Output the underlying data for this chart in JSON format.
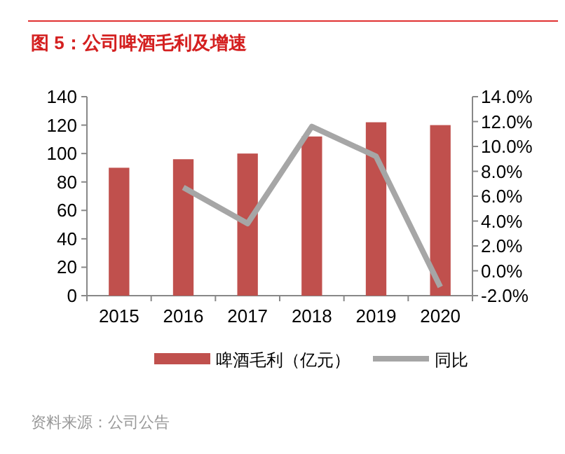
{
  "chart_data": {
    "type": "bar",
    "title": "图 5：公司啤酒毛利及增速",
    "categories": [
      "2015",
      "2016",
      "2017",
      "2018",
      "2019",
      "2020"
    ],
    "series": [
      {
        "name": "啤酒毛利（亿元）",
        "color": "#c0504d",
        "values": [
          90,
          96,
          100,
          112,
          122,
          120
        ]
      },
      {
        "name": "同比",
        "type": "line",
        "axis": "y2",
        "color": "#a6a6a6",
        "values": [
          null,
          6.7,
          3.8,
          11.6,
          9.2,
          -1.3
        ]
      }
    ],
    "ylim": [
      0,
      140
    ],
    "yticks": [
      0,
      20,
      40,
      60,
      80,
      100,
      120,
      140
    ],
    "y2lim": [
      -2,
      14
    ],
    "y2ticks": [
      {
        "value": -2,
        "label": "-2.0%"
      },
      {
        "value": 0,
        "label": "0.0%"
      },
      {
        "value": 2,
        "label": "2.0%"
      },
      {
        "value": 4,
        "label": "4.0%"
      },
      {
        "value": 6,
        "label": "6.0%"
      },
      {
        "value": 8,
        "label": "8.0%"
      },
      {
        "value": 10,
        "label": "10.0%"
      },
      {
        "value": 12,
        "label": "12.0%"
      },
      {
        "value": 14,
        "label": "14.0%"
      }
    ],
    "grid": false,
    "legend": "bottom",
    "marker": "none",
    "annotations": [
      "资料来源：公司公告"
    ]
  }
}
